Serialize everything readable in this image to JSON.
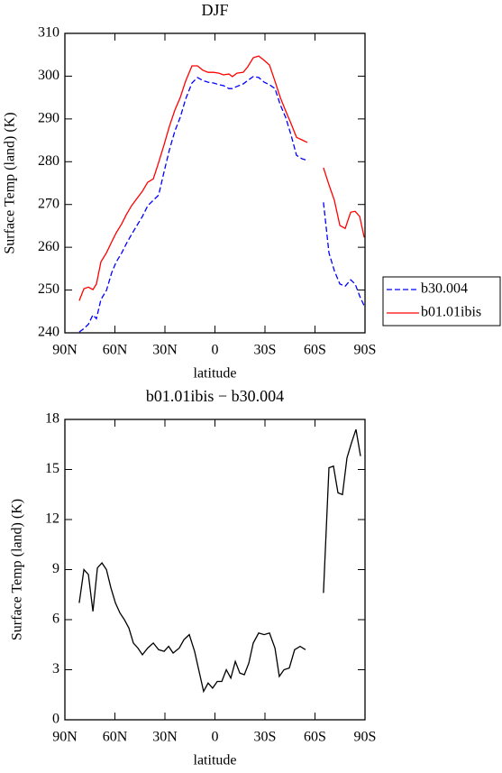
{
  "chart_data": [
    {
      "type": "line",
      "title": "DJF",
      "xlabel": "latitude",
      "ylabel": "Surface Temp (land) (K)",
      "x": [
        81.4,
        78.6,
        75.9,
        73.2,
        71.1,
        68.4,
        65.1,
        61.9,
        59.2,
        55.9,
        53.2,
        50,
        46.8,
        43.5,
        40.3,
        37,
        33.8,
        30.5,
        27.3,
        24,
        20.8,
        17.6,
        13.8,
        10.5,
        7.3,
        4.1,
        0.8,
        -2.4,
        -5.1,
        -8.4,
        -10.5,
        -13.2,
        -17,
        -19.7,
        -23,
        -26.2,
        -29.5,
        -32.7,
        -36,
        -39.2,
        -42.4,
        -45.7,
        -48.9,
        -52.2,
        -55.4,
        -60,
        -65.1,
        -68.4,
        -71.6,
        -74.9,
        -78.1,
        -81.4,
        -84.1,
        -86.8,
        -89.5
      ],
      "series": [
        {
          "name": "b30.004",
          "color": "#0000ff",
          "linestyle": "dashed",
          "values": [
            240.2,
            241.0,
            242,
            244.2,
            243.3,
            247.8,
            249.9,
            254.1,
            256.6,
            258.7,
            260.8,
            263,
            265.1,
            267.2,
            269.7,
            271,
            272.2,
            277.7,
            282.8,
            287.2,
            290.4,
            294.6,
            298.4,
            299.7,
            299,
            298.6,
            298.4,
            298,
            297.8,
            297.1,
            297.1,
            297.6,
            298.2,
            299,
            299.9,
            299.7,
            298.6,
            298,
            297.1,
            293.3,
            290.4,
            286.2,
            281.5,
            280.7,
            280.3,
            null,
            270.5,
            258.7,
            254.5,
            251.4,
            250.9,
            252.4,
            251.4,
            248.6,
            246.3
          ]
        },
        {
          "name": "b01.01ibis",
          "color": "#ff0000",
          "linestyle": "solid",
          "values": [
            247.5,
            250.3,
            250.7,
            250.1,
            251.4,
            256.6,
            258.7,
            261.3,
            263.4,
            265.5,
            267.6,
            269.7,
            271.4,
            273.1,
            275.2,
            276,
            279.8,
            284,
            288.3,
            292.1,
            295,
            298.8,
            302.4,
            302.4,
            301.4,
            300.9,
            300.9,
            300.7,
            300.3,
            300.5,
            299.9,
            300.7,
            300.9,
            302.2,
            304.3,
            304.7,
            303.7,
            302.6,
            298.8,
            295,
            291.9,
            288.9,
            285.7,
            285.1,
            284.5,
            null,
            278.6,
            274.6,
            271,
            265.1,
            264.4,
            268.2,
            268.4,
            267.2,
            262.3
          ]
        }
      ],
      "xlim": [
        90,
        -90
      ],
      "xticks": [
        {
          "value": 90,
          "label": "90N"
        },
        {
          "value": 60,
          "label": "60N"
        },
        {
          "value": 30,
          "label": "30N"
        },
        0,
        {
          "value": -30,
          "label": "30S"
        },
        {
          "value": -60,
          "label": "60S"
        },
        {
          "value": -90,
          "label": "90S"
        }
      ],
      "ylim": [
        240,
        310
      ],
      "yticks": [
        240,
        250,
        260,
        270,
        280,
        290,
        300,
        310
      ],
      "legend": "right"
    },
    {
      "type": "line",
      "title": "b01.01ibis − b30.004",
      "xlabel": "latitude",
      "ylabel": "Surface Temp (land) (K)",
      "x": [
        81.4,
        78.6,
        75.9,
        73.2,
        70.5,
        67.8,
        65.1,
        62.4,
        59.7,
        57,
        54.3,
        51.6,
        48.9,
        46.2,
        43.5,
        40.3,
        37,
        33.8,
        30.5,
        27.8,
        25.1,
        21.4,
        18.6,
        15.4,
        12.2,
        9.5,
        6.8,
        4.1,
        1.4,
        -1.4,
        -4.1,
        -6.8,
        -9.5,
        -12.2,
        -14.9,
        -17.6,
        -20.3,
        -23,
        -26.2,
        -29.5,
        -32.7,
        -36,
        -38.6,
        -41.4,
        -44.6,
        -47.8,
        -51.1,
        -54.3,
        -60,
        -65.1,
        -68.4,
        -71.1,
        -73.8,
        -76.5,
        -79.2,
        -81.9,
        -84.6,
        -87.3
      ],
      "series": [
        {
          "name": "b01.01ibis − b30.004",
          "color": "#000000",
          "linestyle": "solid",
          "values": [
            7.0,
            9.0,
            8.7,
            6.5,
            9.1,
            9.4,
            9.0,
            7.9,
            7.0,
            6.4,
            6.0,
            5.5,
            4.6,
            4.3,
            3.9,
            4.3,
            4.6,
            4.2,
            4.1,
            4.4,
            4.0,
            4.3,
            4.8,
            5.1,
            4.1,
            2.9,
            1.7,
            2.2,
            1.9,
            2.3,
            2.3,
            3.0,
            2.5,
            3.5,
            2.8,
            2.7,
            3.4,
            4.6,
            5.2,
            5.1,
            5.2,
            4.3,
            2.6,
            3.0,
            3.1,
            4.2,
            4.4,
            4.2,
            null,
            7.6,
            15.1,
            15.2,
            13.6,
            13.5,
            15.7,
            16.6,
            17.4,
            15.8
          ]
        }
      ],
      "xlim": [
        90,
        -90
      ],
      "xticks": [
        {
          "value": 90,
          "label": "90N"
        },
        {
          "value": 60,
          "label": "60N"
        },
        {
          "value": 30,
          "label": "30N"
        },
        0,
        {
          "value": -30,
          "label": "30S"
        },
        {
          "value": -60,
          "label": "60S"
        },
        {
          "value": -90,
          "label": "90S"
        }
      ],
      "ylim": [
        0,
        18
      ],
      "yticks": [
        0,
        3,
        6,
        9,
        12,
        15,
        18
      ]
    }
  ]
}
